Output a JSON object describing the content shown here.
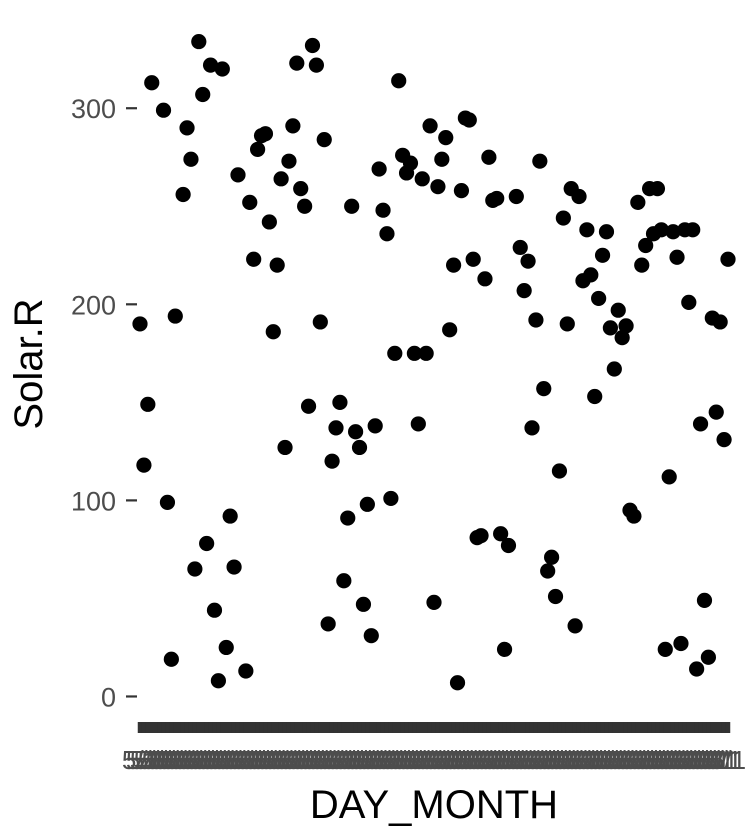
{
  "chart_data": {
    "type": "scatter",
    "xlabel": "DAY_MONTH",
    "ylabel": "Solar.R",
    "ylim": [
      -12,
      345
    ],
    "y_ticks": [
      0,
      100,
      200,
      300
    ],
    "grid": false,
    "point_color": "#000000",
    "x_tick_text": "5/1",
    "points": [
      {
        "x": 1,
        "y": 190
      },
      {
        "x": 2,
        "y": 118
      },
      {
        "x": 3,
        "y": 149
      },
      {
        "x": 4,
        "y": 313
      },
      {
        "x": 7,
        "y": 299
      },
      {
        "x": 8,
        "y": 99
      },
      {
        "x": 9,
        "y": 19
      },
      {
        "x": 10,
        "y": 194
      },
      {
        "x": 12,
        "y": 256
      },
      {
        "x": 13,
        "y": 290
      },
      {
        "x": 14,
        "y": 274
      },
      {
        "x": 15,
        "y": 65
      },
      {
        "x": 16,
        "y": 334
      },
      {
        "x": 17,
        "y": 307
      },
      {
        "x": 18,
        "y": 78
      },
      {
        "x": 19,
        "y": 322
      },
      {
        "x": 20,
        "y": 44
      },
      {
        "x": 21,
        "y": 8
      },
      {
        "x": 22,
        "y": 320
      },
      {
        "x": 23,
        "y": 25
      },
      {
        "x": 24,
        "y": 92
      },
      {
        "x": 25,
        "y": 66
      },
      {
        "x": 26,
        "y": 266
      },
      {
        "x": 28,
        "y": 13
      },
      {
        "x": 29,
        "y": 252
      },
      {
        "x": 30,
        "y": 223
      },
      {
        "x": 31,
        "y": 279
      },
      {
        "x": 32,
        "y": 286
      },
      {
        "x": 33,
        "y": 287
      },
      {
        "x": 34,
        "y": 242
      },
      {
        "x": 35,
        "y": 186
      },
      {
        "x": 36,
        "y": 220
      },
      {
        "x": 37,
        "y": 264
      },
      {
        "x": 38,
        "y": 127
      },
      {
        "x": 39,
        "y": 273
      },
      {
        "x": 40,
        "y": 291
      },
      {
        "x": 41,
        "y": 323
      },
      {
        "x": 42,
        "y": 259
      },
      {
        "x": 43,
        "y": 250
      },
      {
        "x": 44,
        "y": 148
      },
      {
        "x": 45,
        "y": 332
      },
      {
        "x": 46,
        "y": 322
      },
      {
        "x": 47,
        "y": 191
      },
      {
        "x": 48,
        "y": 284
      },
      {
        "x": 49,
        "y": 37
      },
      {
        "x": 50,
        "y": 120
      },
      {
        "x": 51,
        "y": 137
      },
      {
        "x": 52,
        "y": 150
      },
      {
        "x": 53,
        "y": 59
      },
      {
        "x": 54,
        "y": 91
      },
      {
        "x": 55,
        "y": 250
      },
      {
        "x": 56,
        "y": 135
      },
      {
        "x": 57,
        "y": 127
      },
      {
        "x": 58,
        "y": 47
      },
      {
        "x": 59,
        "y": 98
      },
      {
        "x": 60,
        "y": 31
      },
      {
        "x": 61,
        "y": 138
      },
      {
        "x": 62,
        "y": 269
      },
      {
        "x": 63,
        "y": 248
      },
      {
        "x": 64,
        "y": 236
      },
      {
        "x": 65,
        "y": 101
      },
      {
        "x": 66,
        "y": 175
      },
      {
        "x": 67,
        "y": 314
      },
      {
        "x": 68,
        "y": 276
      },
      {
        "x": 69,
        "y": 267
      },
      {
        "x": 70,
        "y": 272
      },
      {
        "x": 71,
        "y": 175
      },
      {
        "x": 72,
        "y": 139
      },
      {
        "x": 73,
        "y": 264
      },
      {
        "x": 74,
        "y": 175
      },
      {
        "x": 75,
        "y": 291
      },
      {
        "x": 76,
        "y": 48
      },
      {
        "x": 77,
        "y": 260
      },
      {
        "x": 78,
        "y": 274
      },
      {
        "x": 79,
        "y": 285
      },
      {
        "x": 80,
        "y": 187
      },
      {
        "x": 81,
        "y": 220
      },
      {
        "x": 82,
        "y": 7
      },
      {
        "x": 83,
        "y": 258
      },
      {
        "x": 84,
        "y": 295
      },
      {
        "x": 85,
        "y": 294
      },
      {
        "x": 86,
        "y": 223
      },
      {
        "x": 87,
        "y": 81
      },
      {
        "x": 88,
        "y": 82
      },
      {
        "x": 89,
        "y": 213
      },
      {
        "x": 90,
        "y": 275
      },
      {
        "x": 91,
        "y": 253
      },
      {
        "x": 92,
        "y": 254
      },
      {
        "x": 93,
        "y": 83
      },
      {
        "x": 94,
        "y": 24
      },
      {
        "x": 95,
        "y": 77
      },
      {
        "x": 97,
        "y": 255
      },
      {
        "x": 98,
        "y": 229
      },
      {
        "x": 99,
        "y": 207
      },
      {
        "x": 100,
        "y": 222
      },
      {
        "x": 101,
        "y": 137
      },
      {
        "x": 102,
        "y": 192
      },
      {
        "x": 103,
        "y": 273
      },
      {
        "x": 104,
        "y": 157
      },
      {
        "x": 105,
        "y": 64
      },
      {
        "x": 106,
        "y": 71
      },
      {
        "x": 107,
        "y": 51
      },
      {
        "x": 108,
        "y": 115
      },
      {
        "x": 109,
        "y": 244
      },
      {
        "x": 110,
        "y": 190
      },
      {
        "x": 111,
        "y": 259
      },
      {
        "x": 112,
        "y": 36
      },
      {
        "x": 113,
        "y": 255
      },
      {
        "x": 114,
        "y": 212
      },
      {
        "x": 115,
        "y": 238
      },
      {
        "x": 116,
        "y": 215
      },
      {
        "x": 117,
        "y": 153
      },
      {
        "x": 118,
        "y": 203
      },
      {
        "x": 119,
        "y": 225
      },
      {
        "x": 120,
        "y": 237
      },
      {
        "x": 121,
        "y": 188
      },
      {
        "x": 122,
        "y": 167
      },
      {
        "x": 123,
        "y": 197
      },
      {
        "x": 124,
        "y": 183
      },
      {
        "x": 125,
        "y": 189
      },
      {
        "x": 126,
        "y": 95
      },
      {
        "x": 127,
        "y": 92
      },
      {
        "x": 128,
        "y": 252
      },
      {
        "x": 129,
        "y": 220
      },
      {
        "x": 130,
        "y": 230
      },
      {
        "x": 131,
        "y": 259
      },
      {
        "x": 132,
        "y": 236
      },
      {
        "x": 133,
        "y": 259
      },
      {
        "x": 134,
        "y": 238
      },
      {
        "x": 135,
        "y": 24
      },
      {
        "x": 136,
        "y": 112
      },
      {
        "x": 137,
        "y": 237
      },
      {
        "x": 138,
        "y": 224
      },
      {
        "x": 139,
        "y": 27
      },
      {
        "x": 140,
        "y": 238
      },
      {
        "x": 141,
        "y": 201
      },
      {
        "x": 142,
        "y": 238
      },
      {
        "x": 143,
        "y": 14
      },
      {
        "x": 144,
        "y": 139
      },
      {
        "x": 145,
        "y": 49
      },
      {
        "x": 146,
        "y": 20
      },
      {
        "x": 147,
        "y": 193
      },
      {
        "x": 148,
        "y": 145
      },
      {
        "x": 149,
        "y": 191
      },
      {
        "x": 150,
        "y": 131
      },
      {
        "x": 151,
        "y": 223
      }
    ]
  }
}
